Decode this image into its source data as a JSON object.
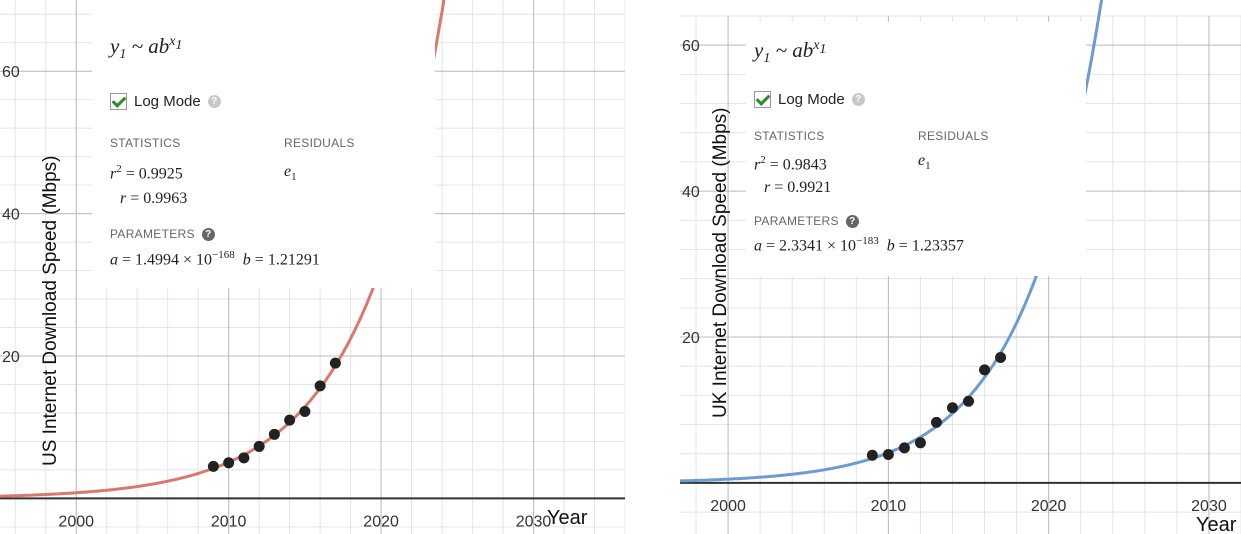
{
  "chart_data": [
    {
      "type": "scatter",
      "ylabel": "US Internet Download Speed (Mbps)",
      "xlabel": "Year",
      "x_ticks": [
        2000,
        2010,
        2020,
        2030
      ],
      "y_ticks": [
        20,
        40,
        60
      ],
      "xlim": [
        1995,
        2036
      ],
      "ylim": [
        -5,
        70
      ],
      "grid": true,
      "curve_color": "#d9786f",
      "point_color": "#222222",
      "x": [
        2009,
        2010,
        2011,
        2012,
        2013,
        2014,
        2015,
        2016,
        2017
      ],
      "y": [
        4.5,
        5.0,
        5.7,
        7.3,
        9.0,
        11.0,
        12.2,
        15.8,
        19.0
      ],
      "regression": {
        "formula": {
          "y": "y",
          "y_sub": "1",
          "mid": " ~ ab",
          "x": "x",
          "x_sub": "1"
        },
        "log_mode_label": "Log Mode",
        "statistics_label": "STATISTICS",
        "residuals_label": "RESIDUALS",
        "parameters_label": "PARAMETERS",
        "r2": "0.9925",
        "r": "0.9963",
        "residual_var": "e",
        "residual_sub": "1",
        "a_mantissa": "1.4994",
        "a_exponent": "−168",
        "b": "1.21291"
      }
    },
    {
      "type": "scatter",
      "ylabel": "UK Internet Download Speed (Mbps)",
      "xlabel": "Year",
      "x_ticks": [
        2000,
        2010,
        2020,
        2030
      ],
      "y_ticks": [
        20,
        40,
        60
      ],
      "xlim": [
        1997,
        2032
      ],
      "ylim": [
        -7,
        64
      ],
      "grid": true,
      "curve_color": "#6c9bd2",
      "point_color": "#222222",
      "x": [
        2009,
        2010,
        2011,
        2012,
        2013,
        2014,
        2015,
        2016,
        2017
      ],
      "y": [
        3.8,
        3.9,
        4.8,
        5.5,
        8.3,
        10.3,
        11.2,
        15.5,
        17.2
      ],
      "regression": {
        "formula": {
          "y": "y",
          "y_sub": "1",
          "mid": " ~ ab",
          "x": "x",
          "x_sub": "1"
        },
        "log_mode_label": "Log Mode",
        "statistics_label": "STATISTICS",
        "residuals_label": "RESIDUALS",
        "parameters_label": "PARAMETERS",
        "r2": "0.9843",
        "r": "0.9921",
        "residual_var": "e",
        "residual_sub": "1",
        "a_mantissa": "2.3341",
        "a_exponent": "−183",
        "b": "1.23357"
      }
    }
  ]
}
